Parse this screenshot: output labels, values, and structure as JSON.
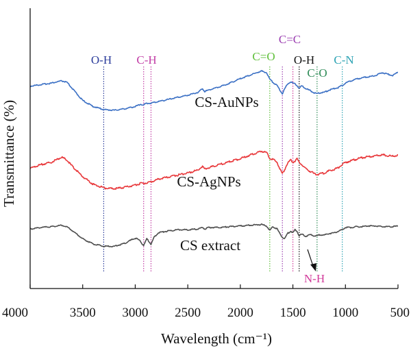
{
  "chart_data": {
    "type": "line",
    "xlabel": "Wavelength (cm⁻¹)",
    "ylabel": "Transmittance (%)",
    "xlim": [
      4000,
      500
    ],
    "x_reversed": true,
    "y_ticks_shown": false,
    "x_ticks": [
      "4000",
      "3500",
      "3000",
      "2500",
      "2000",
      "1500",
      "1000",
      "500"
    ],
    "series": [
      {
        "name": "CS-AuNPs",
        "color": "#3a6fc4",
        "x": [
          4000,
          3900,
          3800,
          3700,
          3650,
          3600,
          3500,
          3400,
          3300,
          3200,
          3100,
          3000,
          2950,
          2920,
          2900,
          2850,
          2800,
          2700,
          2600,
          2500,
          2400,
          2360,
          2340,
          2300,
          2200,
          2100,
          2000,
          1900,
          1800,
          1750,
          1720,
          1680,
          1650,
          1620,
          1600,
          1580,
          1550,
          1520,
          1500,
          1480,
          1460,
          1440,
          1420,
          1400,
          1380,
          1350,
          1320,
          1300,
          1270,
          1250,
          1200,
          1150,
          1100,
          1070,
          1050,
          1030,
          1000,
          950,
          900,
          850,
          800,
          750,
          700,
          650,
          600,
          550,
          500
        ],
        "y": [
          -0.7,
          -0.5,
          -0.3,
          0.0,
          -0.2,
          -1.0,
          -2.6,
          -3.4,
          -3.8,
          -3.9,
          -3.7,
          -3.4,
          -3.1,
          -3.2,
          -3.0,
          -2.95,
          -2.8,
          -2.5,
          -2.2,
          -1.9,
          -1.5,
          -1.0,
          -1.4,
          -1.2,
          -0.8,
          -0.3,
          0.3,
          0.8,
          1.3,
          1.1,
          0.2,
          -0.3,
          -0.6,
          -1.3,
          -1.7,
          -1.1,
          -0.4,
          -0.1,
          -0.3,
          -0.4,
          -0.6,
          -1.0,
          -0.7,
          -0.8,
          -1.0,
          -1.2,
          -1.4,
          -1.6,
          -1.7,
          -1.6,
          -1.5,
          -1.2,
          -1.0,
          -0.9,
          -0.7,
          -0.6,
          -0.3,
          0.0,
          0.2,
          0.4,
          0.5,
          0.6,
          0.8,
          1.1,
          0.9,
          0.7,
          1.2
        ]
      },
      {
        "name": "CS-AgNPs",
        "color": "#e8383b",
        "x": [
          4000,
          3900,
          3800,
          3700,
          3650,
          3600,
          3500,
          3400,
          3300,
          3200,
          3100,
          3000,
          2950,
          2920,
          2900,
          2850,
          2800,
          2700,
          2600,
          2500,
          2400,
          2360,
          2340,
          2300,
          2200,
          2100,
          2000,
          1900,
          1800,
          1750,
          1720,
          1680,
          1650,
          1620,
          1600,
          1580,
          1550,
          1520,
          1500,
          1480,
          1460,
          1440,
          1420,
          1400,
          1380,
          1350,
          1320,
          1300,
          1270,
          1250,
          1200,
          1150,
          1100,
          1070,
          1050,
          1030,
          1000,
          950,
          900,
          850,
          800,
          750,
          700,
          650,
          600,
          550,
          500
        ],
        "y": [
          -0.7,
          -0.2,
          0.1,
          0.8,
          0.4,
          -0.4,
          -1.8,
          -2.8,
          -3.3,
          -3.4,
          -3.2,
          -2.9,
          -2.7,
          -2.7,
          -2.6,
          -2.5,
          -2.2,
          -1.9,
          -1.6,
          -1.3,
          -0.9,
          -0.4,
          -0.8,
          -0.6,
          -0.2,
          0.2,
          0.6,
          1.1,
          1.6,
          1.4,
          0.6,
          0.4,
          0.1,
          -0.9,
          -1.4,
          -0.9,
          0.0,
          0.4,
          0.1,
          0.3,
          0.6,
          0.1,
          -0.1,
          -0.4,
          -0.7,
          -1.0,
          -1.2,
          -1.4,
          -1.5,
          -1.45,
          -1.3,
          -1.0,
          -0.8,
          -0.6,
          -0.4,
          -0.2,
          0.1,
          0.3,
          0.5,
          0.7,
          0.8,
          0.9,
          1.0,
          1.1,
          1.0,
          0.9,
          1.1
        ]
      },
      {
        "name": "CS extract",
        "color": "#4d4d4d",
        "x": [
          4000,
          3900,
          3800,
          3700,
          3650,
          3600,
          3500,
          3400,
          3300,
          3200,
          3100,
          3000,
          2960,
          2920,
          2890,
          2850,
          2820,
          2780,
          2700,
          2600,
          2500,
          2400,
          2360,
          2340,
          2300,
          2200,
          2100,
          2000,
          1900,
          1800,
          1750,
          1720,
          1690,
          1650,
          1620,
          1600,
          1580,
          1550,
          1520,
          1500,
          1480,
          1460,
          1440,
          1420,
          1400,
          1380,
          1350,
          1320,
          1300,
          1270,
          1250,
          1200,
          1150,
          1100,
          1070,
          1050,
          1030,
          1000,
          950,
          900,
          850,
          800,
          750,
          700,
          650,
          600,
          550,
          500
        ],
        "y": [
          -0.1,
          0.1,
          0.2,
          0.4,
          0.2,
          -0.3,
          -1.4,
          -2.1,
          -2.4,
          -2.4,
          -2.0,
          -1.3,
          -1.6,
          -2.3,
          -1.4,
          -2.1,
          -1.2,
          -0.6,
          -0.4,
          -0.2,
          -0.2,
          -0.1,
          0.1,
          -0.1,
          0.1,
          0.1,
          0.2,
          0.3,
          0.4,
          0.5,
          0.3,
          -0.3,
          0.2,
          -0.1,
          -0.8,
          -1.2,
          -1.4,
          -0.7,
          -0.4,
          -0.6,
          -0.2,
          -0.4,
          -1.0,
          -0.8,
          -0.9,
          -1.1,
          -0.9,
          -0.9,
          -1.0,
          -1.0,
          -0.9,
          -0.9,
          -0.7,
          -0.6,
          -0.4,
          -0.3,
          -0.2,
          0.1,
          0.1,
          0.2,
          0.2,
          0.3,
          0.3,
          0.3,
          0.2,
          0.2,
          0.2,
          0.3
        ]
      }
    ],
    "band_markers": [
      {
        "label": "O-H",
        "x": 3300,
        "color": "#2b3c9b"
      },
      {
        "label": "C-H",
        "x": 2920,
        "color": "#c23ea6"
      },
      {
        "label": "C-H",
        "x": 2850,
        "color": "#c23ea6"
      },
      {
        "label": "C=O",
        "x": 1720,
        "color": "#5fbf3a"
      },
      {
        "label": "C=C",
        "x": 1600,
        "color": "#9b3fb1"
      },
      {
        "label": "N-H",
        "x": 1500,
        "color": "#d13a9a"
      },
      {
        "label": "O-H",
        "x": 1440,
        "color": "#111111"
      },
      {
        "label": "C-O",
        "x": 1270,
        "color": "#2e8b57"
      },
      {
        "label": "C-N",
        "x": 1030,
        "color": "#2ca3b4"
      }
    ],
    "band_labels": [
      {
        "text": "O-H",
        "color": "#2b3c9b"
      },
      {
        "text": "C-H",
        "color": "#c23ea6"
      },
      {
        "text": "C=O",
        "color": "#5fbf3a"
      },
      {
        "text": "C=C",
        "color": "#9b3fb1"
      },
      {
        "text": "O-H",
        "color": "#111111"
      },
      {
        "text": "C-O",
        "color": "#2e8b57"
      },
      {
        "text": "C-N",
        "color": "#2ca3b4"
      },
      {
        "text": "N-H",
        "color": "#d13a9a"
      }
    ],
    "grid": false
  }
}
